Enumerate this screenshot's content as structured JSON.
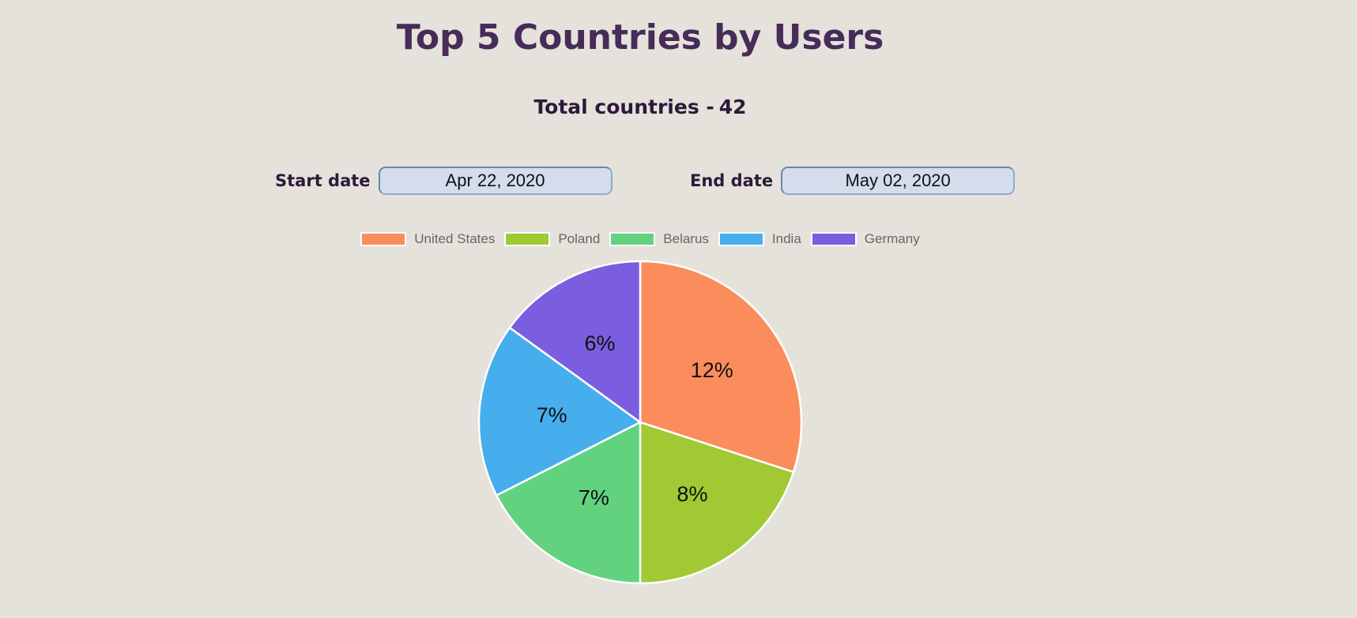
{
  "page": {
    "title": "Top 5 Countries by Users",
    "subtitle_label": "Total countries -",
    "subtitle_value": "42"
  },
  "filters": {
    "start_label": "Start date",
    "start_value": "Apr 22, 2020",
    "end_label": "End date",
    "end_value": "May 02, 2020"
  },
  "chart_data": {
    "type": "pie",
    "categories": [
      "United States",
      "Poland",
      "Belarus",
      "India",
      "Germany"
    ],
    "values": [
      12,
      8,
      7,
      7,
      6
    ],
    "labels": [
      "12%",
      "8%",
      "7%",
      "7%",
      "6%"
    ],
    "colors": [
      "#fb8d5c",
      "#a0c933",
      "#62d27f",
      "#47aeee",
      "#7b5ddf"
    ],
    "legend_position": "top",
    "start_angle": "12 o'clock, clockwise"
  }
}
